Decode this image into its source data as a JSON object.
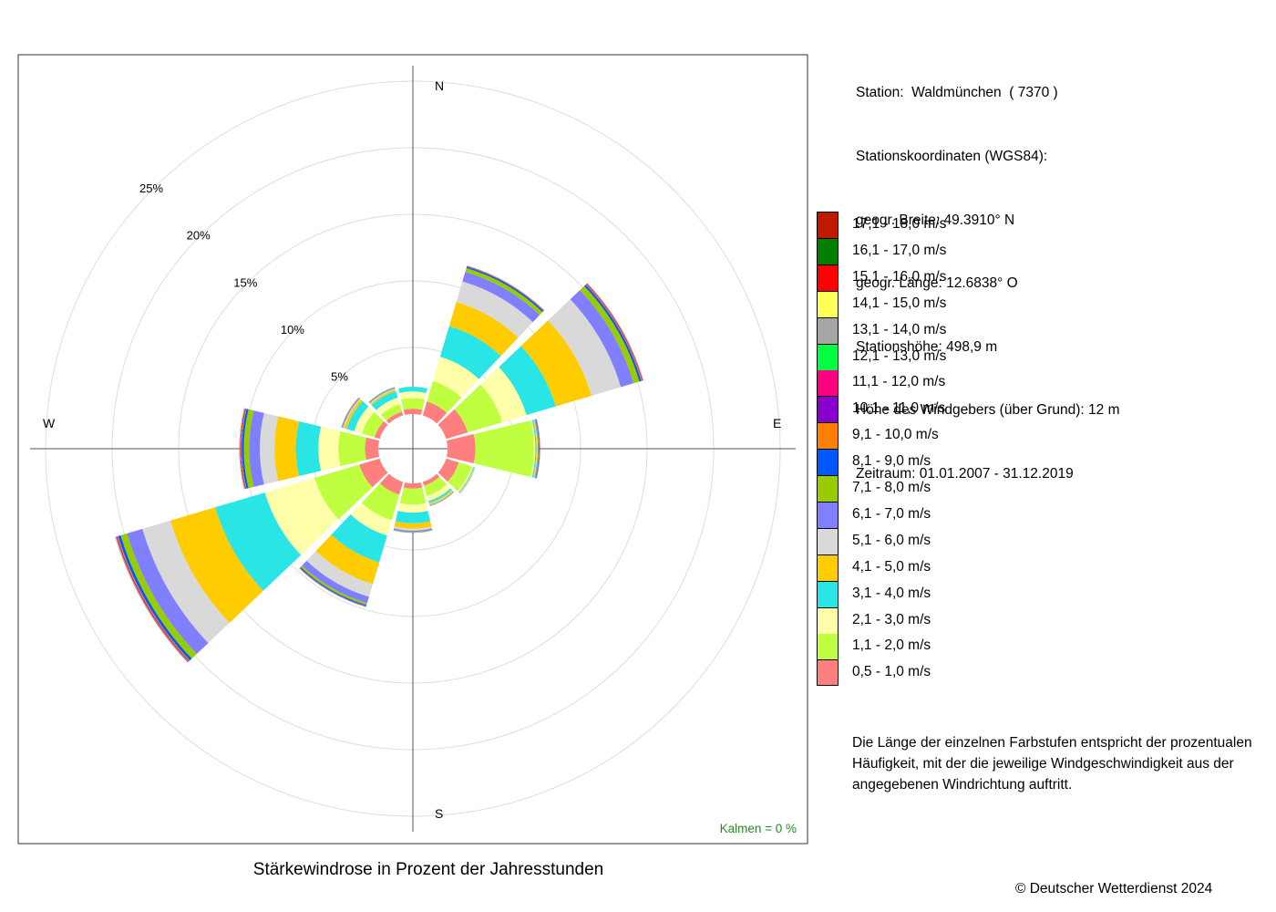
{
  "station": {
    "lines": [
      "Station:  Waldmünchen  ( 7370 )",
      "Stationskoordinaten (WGS84):",
      "geogr. Breite: 49.3910° N",
      "geogr. Länge: 12.6838° O",
      "Stationshöhe: 498,9 m",
      "Höhe des Windgebers (über Grund): 12 m",
      "Zeitraum: 01.01.2007 - 31.12.2019"
    ]
  },
  "legend": {
    "bins": [
      {
        "label": "0,5 - 1,0 m/s",
        "color": "#FF7F7F"
      },
      {
        "label": "1,1 - 2,0 m/s",
        "color": "#BFFF3F"
      },
      {
        "label": "2,1 - 3,0 m/s",
        "color": "#FFFFAA"
      },
      {
        "label": "3,1 - 4,0 m/s",
        "color": "#2AE5E5"
      },
      {
        "label": "4,1 - 5,0 m/s",
        "color": "#FFCC00"
      },
      {
        "label": "5,1 - 6,0 m/s",
        "color": "#D9D9D9"
      },
      {
        "label": "6,1 - 7,0 m/s",
        "color": "#7F7FFF"
      },
      {
        "label": "7,1 - 8,0 m/s",
        "color": "#99CC00"
      },
      {
        "label": "8,1 - 9,0 m/s",
        "color": "#0059FF"
      },
      {
        "label": "9,1 - 10,0 m/s",
        "color": "#FF8000"
      },
      {
        "label": "10,1 - 11,0 m/s",
        "color": "#8800CC"
      },
      {
        "label": "11,1 - 12,0 m/s",
        "color": "#FF0080"
      },
      {
        "label": "12,1 - 13,0 m/s",
        "color": "#00FF40"
      },
      {
        "label": "13,1 - 14,0 m/s",
        "color": "#A6A6A6"
      },
      {
        "label": "14,1 - 15,0 m/s",
        "color": "#FFFF55"
      },
      {
        "label": "15,1 - 16,0 m/s",
        "color": "#FF0000"
      },
      {
        "label": "16,1 - 17,0 m/s",
        "color": "#007F00"
      },
      {
        "label": "17,1 - 18,0 m/s",
        "color": "#BF1A00"
      }
    ]
  },
  "note": "Die Länge der einzelnen Farbstufen entspricht der prozentualen Häufigkeit, mit der die jeweilige Windgeschwindigkeit aus der angegebenen Windrichtung auftritt.",
  "caption": "Stärkewindrose in Prozent der Jahresstunden",
  "copyright": "© Deutscher Wetterdienst  2024",
  "chart_data": {
    "type": "wind-rose",
    "unit": "%",
    "compass": {
      "N": "N",
      "E": "E",
      "S": "S",
      "W": "W"
    },
    "ring_values": [
      5,
      10,
      15,
      20,
      25
    ],
    "ring_labels": [
      "5%",
      "10%",
      "15%",
      "20%",
      "25%"
    ],
    "calms_label": "Kalmen  =  0 %",
    "calms_color": "#228B22",
    "directions_deg": [
      0,
      30,
      60,
      90,
      120,
      150,
      180,
      210,
      240,
      270,
      300,
      330
    ],
    "series": [
      {
        "name": "0,5 - 1,0 m/s",
        "values": [
          0.4,
          1.1,
          1.7,
          2.1,
          1.0,
          0.3,
          0.4,
          1.0,
          1.6,
          1.0,
          0.4,
          0.3
        ]
      },
      {
        "name": "1,1 - 2,0 m/s",
        "values": [
          0.8,
          1.6,
          2.7,
          4.4,
          1.0,
          0.8,
          1.2,
          2.0,
          3.5,
          2.0,
          1.0,
          0.6
        ]
      },
      {
        "name": "2,1 - 3,0 m/s",
        "values": [
          0.5,
          1.9,
          1.9,
          0.1,
          0.12,
          0.4,
          0.6,
          1.2,
          3.9,
          1.5,
          0.6,
          0.5
        ]
      },
      {
        "name": "3,1 - 4,0 m/s",
        "values": [
          0.35,
          2.4,
          2.3,
          0.08,
          0.06,
          0.15,
          0.8,
          2.1,
          3.9,
          1.7,
          0.6,
          0.5
        ]
      },
      {
        "name": "4,1 - 5,0 m/s",
        "values": [
          0.0,
          1.9,
          2.8,
          0.06,
          0.04,
          0.1,
          0.4,
          1.7,
          3.5,
          1.6,
          0.2,
          0.12
        ]
      },
      {
        "name": "5,1 - 6,0 m/s",
        "values": [
          0.0,
          1.6,
          2.3,
          0.04,
          0.03,
          0.06,
          0.15,
          1.0,
          2.2,
          1.1,
          0.08,
          0.08
        ]
      },
      {
        "name": "6,1 - 7,0 m/s",
        "values": [
          0.0,
          0.75,
          1.0,
          0.04,
          0.02,
          0.04,
          0.1,
          0.5,
          1.2,
          0.8,
          0.06,
          0.06
        ]
      },
      {
        "name": "7,1 - 8,0 m/s",
        "values": [
          0.0,
          0.3,
          0.45,
          0.05,
          0.01,
          0.03,
          0.05,
          0.15,
          0.5,
          0.4,
          0.04,
          0.04
        ]
      },
      {
        "name": "8,1 - 9,0 m/s",
        "values": [
          0.0,
          0.12,
          0.15,
          0.05,
          0.0,
          0.01,
          0.01,
          0.08,
          0.2,
          0.15,
          0.02,
          0.02
        ]
      },
      {
        "name": "9,1 - 10,0 m/s",
        "values": [
          0.0,
          0.04,
          0.06,
          0.02,
          0.0,
          0.0,
          0.0,
          0.03,
          0.08,
          0.06,
          0.01,
          0.0
        ]
      },
      {
        "name": "10,1 - 11,0 m/s",
        "values": [
          0.0,
          0.02,
          0.04,
          0.01,
          0.0,
          0.0,
          0.0,
          0.02,
          0.05,
          0.04,
          0.0,
          0.0
        ]
      },
      {
        "name": "11,1 - 12,0 m/s",
        "values": [
          0.0,
          0.01,
          0.02,
          0.01,
          0.0,
          0.0,
          0.0,
          0.01,
          0.03,
          0.03,
          0.0,
          0.0
        ]
      },
      {
        "name": "12,1 - 13,0 m/s",
        "values": [
          0.0,
          0.0,
          0.01,
          0.0,
          0.0,
          0.0,
          0.0,
          0.01,
          0.02,
          0.02,
          0.0,
          0.0
        ]
      },
      {
        "name": "13,1 - 14,0 m/s",
        "values": [
          0.0,
          0.0,
          0.01,
          0.0,
          0.0,
          0.0,
          0.0,
          0.0,
          0.02,
          0.01,
          0.0,
          0.0
        ]
      },
      {
        "name": "14,1 - 15,0 m/s",
        "values": [
          0.0,
          0.0,
          0.01,
          0.0,
          0.0,
          0.0,
          0.0,
          0.0,
          0.01,
          0.01,
          0.0,
          0.0
        ]
      },
      {
        "name": "15,1 - 16,0 m/s",
        "values": [
          0.0,
          0.0,
          0.01,
          0.0,
          0.0,
          0.0,
          0.0,
          0.0,
          0.01,
          0.01,
          0.0,
          0.0
        ]
      },
      {
        "name": "16,1 - 17,0 m/s",
        "values": [
          0.0,
          0.0,
          0.0,
          0.0,
          0.0,
          0.0,
          0.0,
          0.0,
          0.0,
          0.0,
          0.0,
          0.0
        ]
      },
      {
        "name": "17,1 - 18,0 m/s",
        "values": [
          0.0,
          0.0,
          0.01,
          0.0,
          0.0,
          0.0,
          0.0,
          0.0,
          0.01,
          0.01,
          0.0,
          0.0
        ]
      }
    ]
  }
}
